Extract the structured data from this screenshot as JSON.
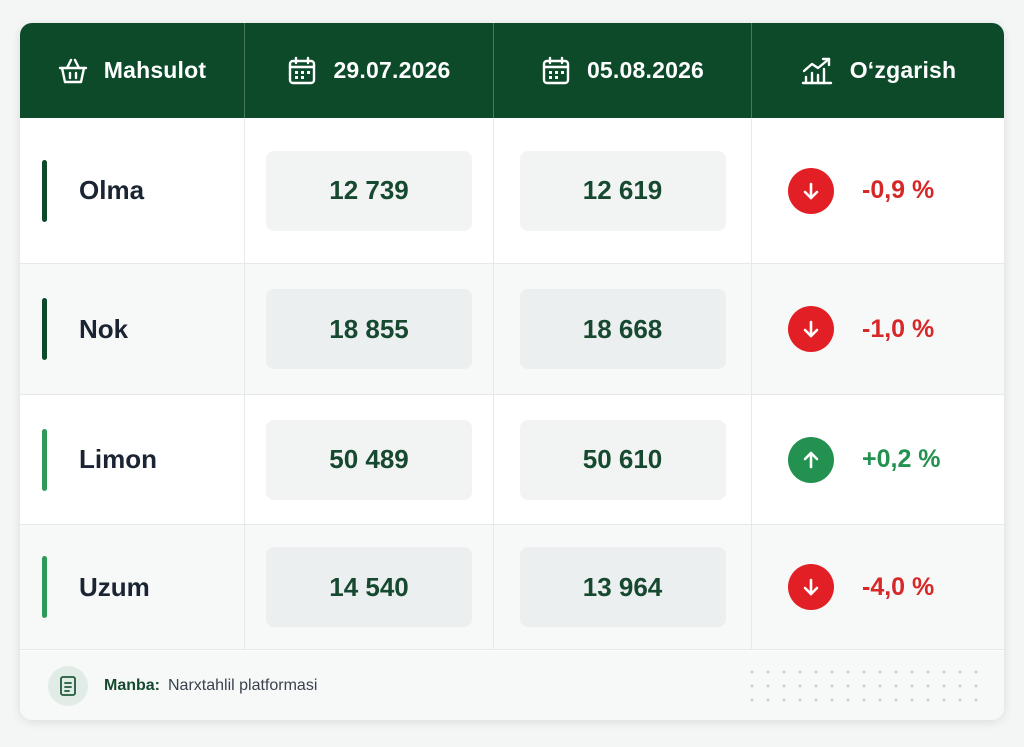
{
  "header": {
    "product": "Mahsulot",
    "date1": "29.07.2026",
    "date2": "05.08.2026",
    "change": "O‘zgarish"
  },
  "rows": [
    {
      "name": "Olma",
      "v1": "12 739",
      "v2": "12 619",
      "change": "-0,9 %",
      "direction": "down"
    },
    {
      "name": "Nok",
      "v1": "18 855",
      "v2": "18 668",
      "change": "-1,0 %",
      "direction": "down"
    },
    {
      "name": "Limon",
      "v1": "50 489",
      "v2": "50 610",
      "change": "+0,2 %",
      "direction": "up"
    },
    {
      "name": "Uzum",
      "v1": "14 540",
      "v2": "13 964",
      "change": "-4,0 %",
      "direction": "down"
    }
  ],
  "footer": {
    "source_label": "Manba:",
    "source_value": "Narxtahlil platformasi"
  },
  "icons": {
    "header_product": "basket-icon",
    "header_dates": "calendar-icon",
    "header_change": "chart-trend-icon",
    "down": "arrow-down-icon",
    "up": "arrow-up-icon",
    "footer": "document-icon"
  },
  "colors": {
    "header_bg": "#0c4a2a",
    "down": "#e21f25",
    "up": "#23914f"
  }
}
